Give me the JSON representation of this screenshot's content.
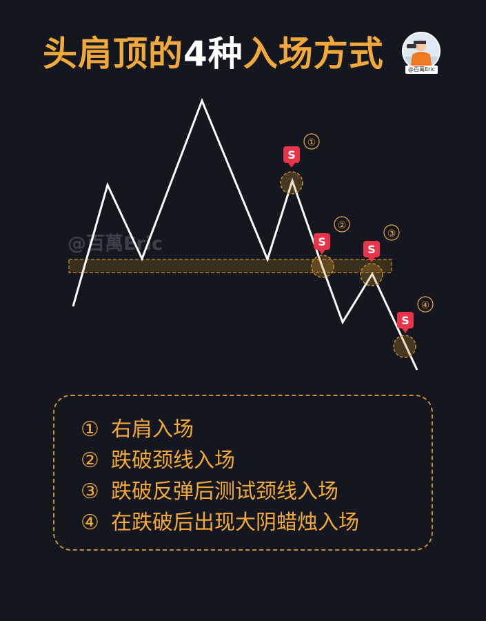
{
  "title": {
    "part1": "头肩顶的",
    "part2": "4种",
    "part3": "入场方式"
  },
  "avatar": {
    "tag": "@百萬Eric"
  },
  "watermark": "@百萬Eric",
  "diagram": {
    "signal_icon": "sell-signal-icon",
    "signal_letter": "S",
    "markers": [
      {
        "label": "①"
      },
      {
        "label": "②"
      },
      {
        "label": "③"
      },
      {
        "label": "④"
      }
    ]
  },
  "entries": [
    {
      "num": "①",
      "text": "右肩入场"
    },
    {
      "num": "②",
      "text": "跌破颈线入场"
    },
    {
      "num": "③",
      "text": "跌破反弹后测试颈线入场"
    },
    {
      "num": "④",
      "text": "在跌破后出现大阴蜡烛入场"
    }
  ],
  "colors": {
    "background": "#14171f",
    "accent": "#f2a93b",
    "line": "#ffffff",
    "signal": "#e8344a"
  }
}
